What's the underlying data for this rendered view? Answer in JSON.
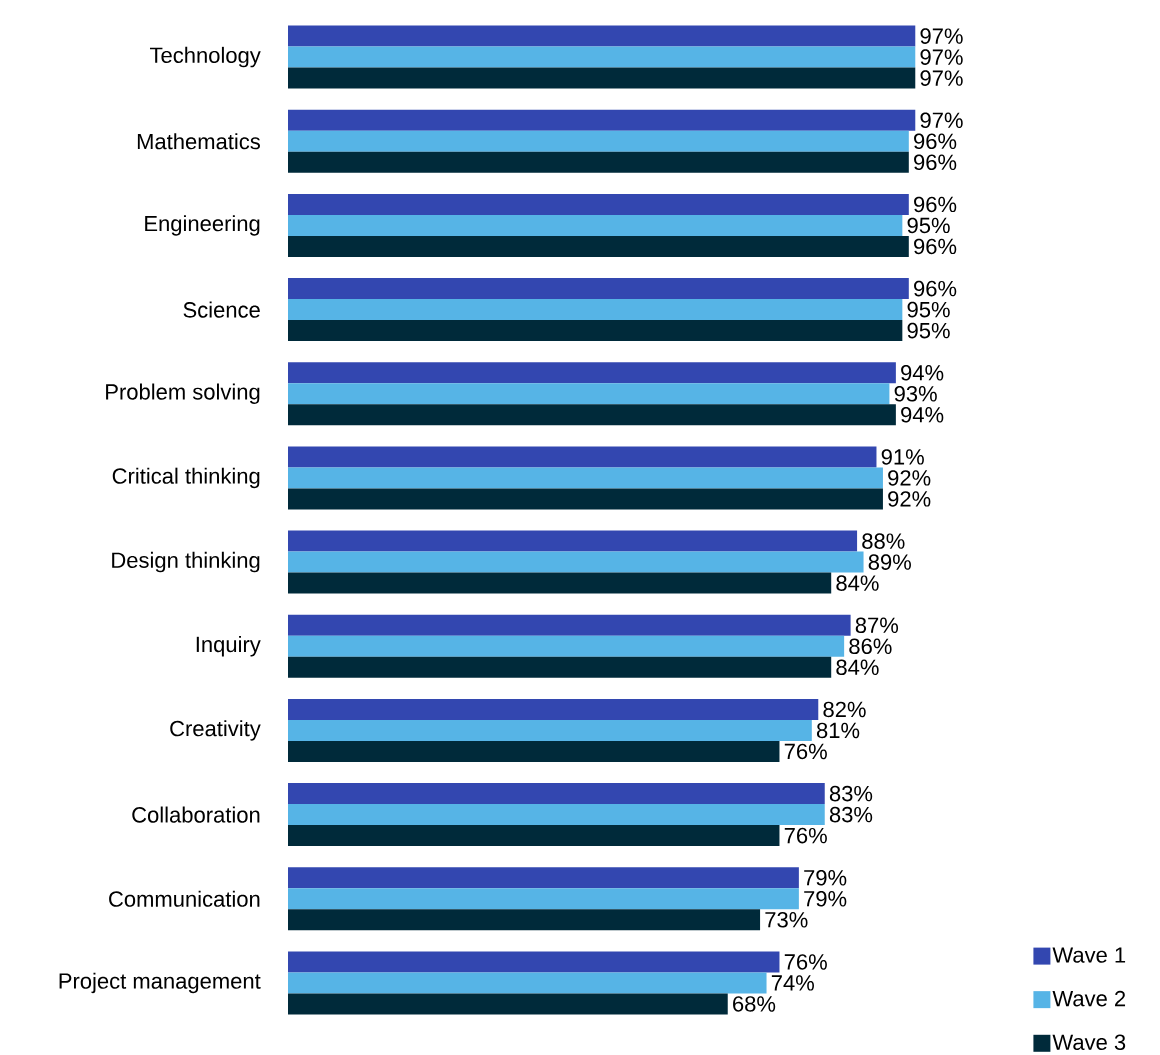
{
  "chart_data": {
    "type": "bar",
    "orientation": "horizontal",
    "categories": [
      "Technology",
      "Mathematics",
      "Engineering",
      "Science",
      "Problem solving",
      "Critical thinking",
      "Design thinking",
      "Inquiry",
      "Creativity",
      "Collaboration",
      "Communication",
      "Project management"
    ],
    "series": [
      {
        "name": "Wave 1",
        "color": "#3347b0",
        "values": [
          97,
          97,
          96,
          96,
          94,
          91,
          88,
          87,
          82,
          83,
          79,
          76
        ],
        "value_labels": [
          "97%",
          "97%",
          "96%",
          "96%",
          "94%",
          "91%",
          "88%",
          "87%",
          "82%",
          "83%",
          "79%",
          "76%"
        ]
      },
      {
        "name": "Wave 2",
        "color": "#56b4e6",
        "values": [
          97,
          96,
          95,
          95,
          93,
          92,
          89,
          86,
          81,
          83,
          79,
          74
        ],
        "value_labels": [
          "97%",
          "96%",
          "95%",
          "95%",
          "93%",
          "92%",
          "89%",
          "86%",
          "81%",
          "83%",
          "79%",
          "74%"
        ]
      },
      {
        "name": "Wave 3",
        "color": "#002a3a",
        "values": [
          97,
          96,
          96,
          95,
          94,
          92,
          84,
          84,
          76,
          76,
          73,
          68
        ],
        "value_labels": [
          "97%",
          "96%",
          "96%",
          "95%",
          "94%",
          "92%",
          "84%",
          "84%",
          "76%",
          "76%",
          "73%",
          "68%"
        ]
      }
    ],
    "tick_labels": "y",
    "legend": "bottom right"
  }
}
